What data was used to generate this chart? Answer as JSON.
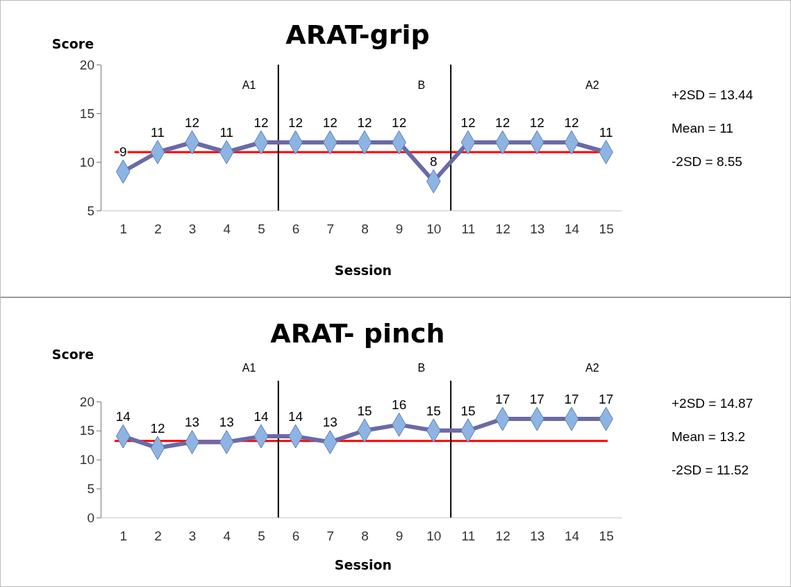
{
  "chart_data": [
    {
      "type": "line",
      "title": "ARAT-grip",
      "ylabel": "Score",
      "xlabel": "Session",
      "x": [
        1,
        2,
        3,
        4,
        5,
        6,
        7,
        8,
        9,
        10,
        11,
        12,
        13,
        14,
        15
      ],
      "xlim": [
        0.35,
        15.45
      ],
      "xticks": [
        1,
        2,
        3,
        4,
        5,
        6,
        7,
        8,
        9,
        10,
        11,
        12,
        13,
        14,
        15
      ],
      "ylim": [
        5,
        20
      ],
      "yticks": [
        5,
        10,
        15,
        20
      ],
      "marker": "diamond",
      "data_labels": true,
      "grid": false,
      "series": [
        {
          "color": "#6a6aa6",
          "values": [
            9,
            11,
            12,
            11,
            12,
            12,
            12,
            12,
            12,
            8,
            12,
            12,
            12,
            12,
            11
          ]
        }
      ],
      "ref_lines": [
        {
          "axis": "y",
          "value": 11,
          "color": "#ff0000"
        },
        {
          "axis": "x",
          "value": 5.5,
          "color": "#000000"
        },
        {
          "axis": "x",
          "value": 10.5,
          "color": "#000000"
        }
      ],
      "annotations": [
        "A1",
        "B",
        "A2",
        "+2SD = 13.44",
        "Mean = 11",
        "-2SD = 8.55"
      ]
    },
    {
      "type": "line",
      "title": "ARAT- pinch",
      "ylabel": "Score",
      "xlabel": "Session",
      "x": [
        1,
        2,
        3,
        4,
        5,
        6,
        7,
        8,
        9,
        10,
        11,
        12,
        13,
        14,
        15
      ],
      "xlim": [
        0.35,
        15.45
      ],
      "xticks": [
        1,
        2,
        3,
        4,
        5,
        6,
        7,
        8,
        9,
        10,
        11,
        12,
        13,
        14,
        15
      ],
      "ylim": [
        0,
        20
      ],
      "yticks": [
        0,
        5,
        10,
        15,
        20
      ],
      "marker": "diamond",
      "data_labels": true,
      "grid": false,
      "series": [
        {
          "color": "#6a6aa6",
          "values": [
            14,
            12,
            13,
            13,
            14,
            14,
            13,
            15,
            16,
            15,
            15,
            17,
            17,
            17,
            17
          ]
        }
      ],
      "ref_lines": [
        {
          "axis": "y",
          "value": 13.2,
          "color": "#ff0000"
        },
        {
          "axis": "x",
          "value": 5.5,
          "color": "#000000"
        },
        {
          "axis": "x",
          "value": 10.5,
          "color": "#000000"
        }
      ],
      "annotations": [
        "A1",
        "B",
        "A2",
        "+2SD = 14.87",
        "Mean = 13.2",
        "-2SD = 11.52"
      ]
    }
  ]
}
